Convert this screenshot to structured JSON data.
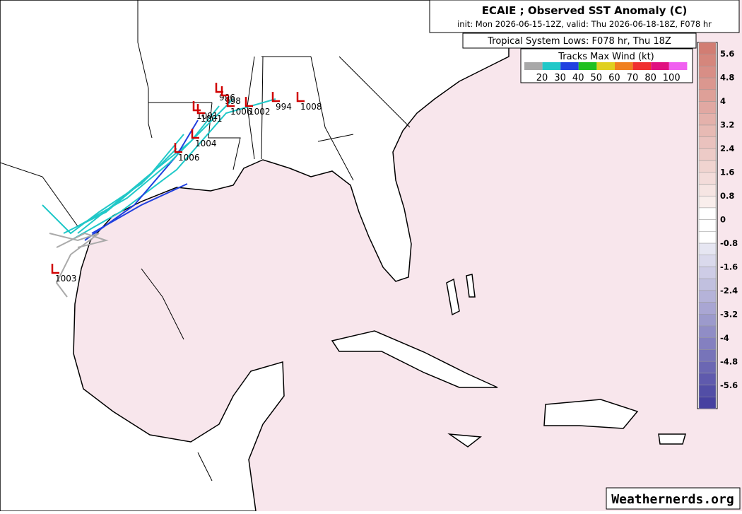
{
  "header": {
    "title": "ECAIE ; Observed SST Anomaly (C)",
    "init": "init: Mon 2026-06-15-12Z, valid: Thu 2026-06-18-18Z, F078 hr",
    "subtitle": "Tropical System Lows: F078 hr, Thu 18Z"
  },
  "wind_legend": {
    "title": "Tracks Max Wind (kt)",
    "labels": [
      20,
      30,
      40,
      50,
      60,
      70,
      80,
      100
    ]
  },
  "colorbar": {
    "labels": [
      5.6,
      4.8,
      4,
      3.2,
      2.4,
      1.6,
      0.8,
      0,
      -0.8,
      -1.6,
      -2.4,
      -3.2,
      -4,
      -4.8,
      -5.6
    ]
  },
  "lows": [
    "996",
    "998",
    "1001",
    "1001",
    "1006",
    "1002",
    "994",
    "1008",
    "1004",
    "1006",
    "1003"
  ],
  "credit": "Weathernerds.org"
}
